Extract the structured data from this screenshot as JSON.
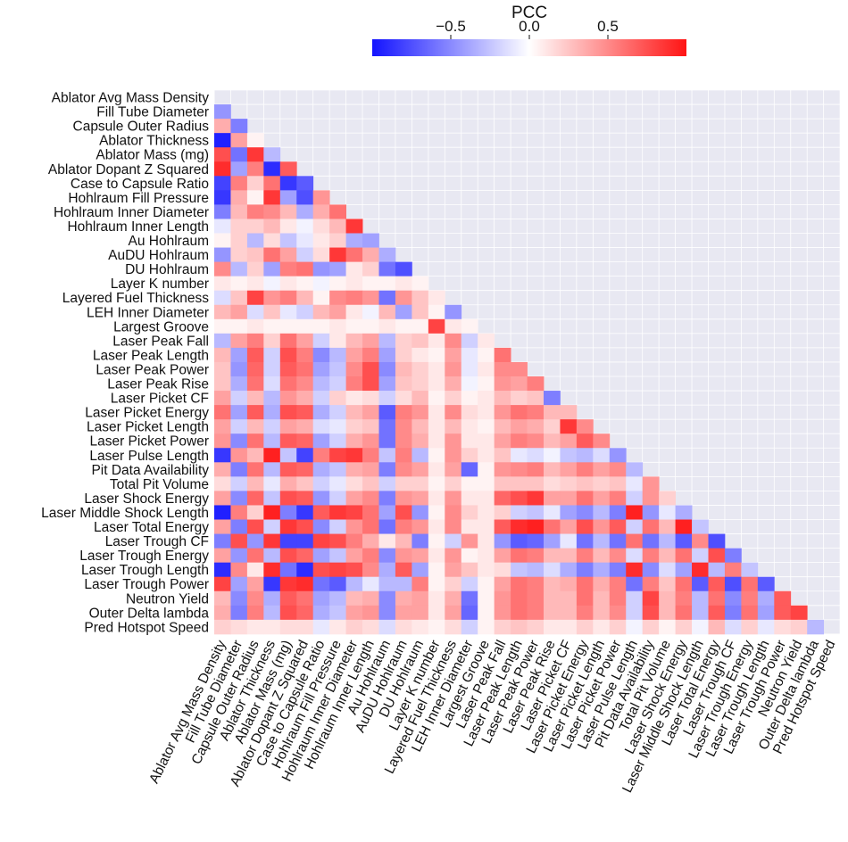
{
  "chart_data": {
    "type": "heatmap",
    "layout_shape": "lower-triangle",
    "colorbar": {
      "title": "PCC",
      "range": [
        -1,
        1
      ],
      "ticks": [
        -0.5,
        0.0,
        0.5
      ],
      "tick_labels": [
        "−0.5",
        "0.0",
        "0.5"
      ],
      "colors": {
        "negative": "#1414ff",
        "zero": "#ffffff",
        "positive": "#ff1414"
      }
    },
    "grid_background": "#e8e8f2",
    "variables": [
      "Ablator Avg Mass Density",
      "Fill Tube Diameter",
      "Capsule Outer Radius",
      "Ablator Thickness",
      "Ablator Mass (mg)",
      "Ablator Dopant Z Squared",
      "Case to Capsule Ratio",
      "Hohlraum Fill Pressure",
      "Hohlraum Inner Diameter",
      "Hohlraum Inner Length",
      "Au Hohlraum",
      "AuDU Hohlraum",
      "DU Hohlraum",
      "Layer K number",
      "Layered Fuel Thickness",
      "LEH Inner Diameter",
      "Largest Groove",
      "Laser Peak Fall",
      "Laser Peak Length",
      "Laser Peak Power",
      "Laser Peak Rise",
      "Laser Picket CF",
      "Laser Picket Energy",
      "Laser Picket Length",
      "Laser Picket Power",
      "Laser Pulse Length",
      "Pit Data Availability",
      "Total Pit Volume",
      "Laser Shock Energy",
      "Laser Middle Shock Length",
      "Laser Total Energy",
      "Laser Trough CF",
      "Laser Trough Energy",
      "Laser Trough Length",
      "Laser Trough Power",
      "Neutron Yield",
      "Outer Delta lambda",
      "Pred Hotspot Speed"
    ],
    "rows": [
      [],
      [
        -0.45
      ],
      [
        0.35,
        -0.55
      ],
      [
        -0.95,
        0.4,
        0.05
      ],
      [
        0.75,
        -0.6,
        0.85,
        -0.3
      ],
      [
        0.9,
        -0.4,
        0.55,
        -0.9,
        0.7
      ],
      [
        -0.8,
        0.55,
        0.2,
        0.6,
        -0.85,
        -0.7
      ],
      [
        -0.85,
        0.35,
        0.05,
        0.85,
        -0.4,
        -0.75,
        0.45
      ],
      [
        -0.55,
        0.3,
        0.55,
        0.5,
        0.3,
        -0.35,
        0.35,
        0.6
      ],
      [
        -0.1,
        0.2,
        0.2,
        0.3,
        0.1,
        -0.05,
        0.15,
        0.3,
        0.85
      ],
      [
        0.05,
        0.2,
        -0.3,
        0.15,
        -0.25,
        -0.1,
        0.1,
        0.2,
        -0.35,
        -0.4
      ],
      [
        -0.45,
        0.2,
        0.25,
        0.6,
        0.4,
        -0.2,
        0.15,
        0.85,
        0.6,
        0.35,
        -0.35
      ],
      [
        0.5,
        -0.3,
        0.2,
        -0.4,
        0.55,
        0.6,
        -0.45,
        -0.4,
        0.1,
        0.2,
        -0.6,
        -0.75
      ],
      [
        0.1,
        0.05,
        0.1,
        -0.05,
        0.1,
        0.05,
        -0.05,
        0.05,
        0.1,
        0.05,
        0.05,
        0.1,
        0.05
      ],
      [
        -0.15,
        0.25,
        0.8,
        0.45,
        0.55,
        0.3,
        0.05,
        0.5,
        0.55,
        0.45,
        -0.6,
        0.45,
        0.25,
        0.1
      ],
      [
        0.3,
        0.4,
        -0.15,
        0.25,
        -0.1,
        -0.2,
        0.3,
        0.4,
        0.1,
        -0.05,
        0.3,
        -0.4,
        0.25,
        0.05,
        -0.45
      ],
      [
        0.05,
        0.05,
        0.1,
        0.05,
        0.05,
        0.05,
        0.05,
        0.1,
        0.05,
        0.05,
        0.1,
        0.05,
        0.05,
        0.8,
        0.1,
        0.05
      ],
      [
        -0.3,
        0.4,
        0.55,
        0.2,
        0.6,
        0.4,
        -0.2,
        0.1,
        0.3,
        0.4,
        -0.3,
        0.2,
        0.25,
        0.1,
        0.5,
        -0.2,
        0.1
      ],
      [
        0.3,
        -0.4,
        0.7,
        -0.2,
        0.75,
        0.55,
        -0.5,
        -0.3,
        0.4,
        0.55,
        -0.4,
        0.2,
        0.1,
        0.05,
        0.4,
        -0.1,
        0.05,
        0.6
      ],
      [
        0.25,
        -0.45,
        0.65,
        -0.2,
        0.7,
        0.6,
        -0.4,
        -0.25,
        0.5,
        0.75,
        -0.5,
        0.3,
        0.2,
        0.1,
        0.45,
        -0.1,
        0.1,
        0.5,
        0.5
      ],
      [
        0.25,
        -0.35,
        0.6,
        -0.15,
        0.6,
        0.5,
        -0.3,
        -0.2,
        0.55,
        0.75,
        -0.4,
        0.25,
        0.2,
        0.1,
        0.35,
        -0.05,
        0.05,
        0.45,
        0.4,
        0.55
      ],
      [
        0.4,
        -0.2,
        0.3,
        -0.3,
        0.45,
        0.35,
        -0.2,
        0.2,
        0.1,
        0.15,
        -0.2,
        0.15,
        0.3,
        0.05,
        0.2,
        0.05,
        0.1,
        0.3,
        0.2,
        0.25,
        -0.55
      ],
      [
        0.6,
        -0.4,
        0.7,
        -0.35,
        0.75,
        0.7,
        -0.35,
        -0.2,
        0.3,
        0.4,
        -0.7,
        0.55,
        0.45,
        0.1,
        0.5,
        0.15,
        0.1,
        0.45,
        0.6,
        0.55,
        0.3,
        0.3
      ],
      [
        0.4,
        -0.2,
        0.3,
        -0.2,
        0.4,
        0.35,
        -0.15,
        -0.1,
        0.2,
        0.25,
        -0.6,
        0.5,
        0.3,
        0.1,
        0.3,
        0.1,
        0.05,
        0.3,
        0.4,
        0.35,
        0.2,
        0.85,
        0.5
      ],
      [
        0.45,
        -0.5,
        0.6,
        -0.3,
        0.7,
        0.65,
        -0.4,
        -0.2,
        0.35,
        0.45,
        -0.6,
        0.5,
        0.35,
        0.1,
        0.45,
        0.1,
        0.1,
        0.4,
        0.55,
        0.5,
        0.3,
        0.4,
        0.7,
        0.5
      ],
      [
        -0.85,
        0.45,
        0.3,
        0.95,
        -0.25,
        -0.8,
        0.55,
        0.8,
        0.85,
        0.55,
        -0.25,
        0.55,
        -0.3,
        0.05,
        0.45,
        0.2,
        0.1,
        0.25,
        -0.1,
        -0.15,
        -0.05,
        -0.25,
        -0.3,
        -0.15,
        -0.45
      ],
      [
        0.35,
        -0.55,
        0.6,
        -0.3,
        0.7,
        0.65,
        -0.35,
        -0.25,
        0.35,
        0.4,
        -0.55,
        0.5,
        0.4,
        0.1,
        0.4,
        -0.65,
        0.05,
        0.45,
        0.5,
        0.55,
        0.3,
        0.4,
        0.55,
        0.4,
        0.5,
        -0.3
      ],
      [
        0.15,
        -0.2,
        0.3,
        -0.1,
        0.35,
        0.25,
        -0.2,
        -0.1,
        0.15,
        0.25,
        -0.2,
        0.2,
        0.2,
        0.05,
        0.2,
        0.05,
        0.05,
        0.25,
        0.25,
        0.25,
        0.15,
        0.2,
        0.25,
        0.2,
        0.25,
        -0.1,
        0.45
      ],
      [
        0.4,
        -0.5,
        0.65,
        -0.25,
        0.75,
        0.7,
        -0.45,
        -0.2,
        0.4,
        0.5,
        -0.55,
        0.45,
        0.4,
        0.1,
        0.45,
        0.1,
        0.1,
        0.65,
        0.75,
        0.85,
        0.4,
        0.4,
        0.6,
        0.4,
        0.55,
        -0.2,
        0.45,
        0.2
      ],
      [
        -0.95,
        0.55,
        0.2,
        0.95,
        -0.55,
        -0.85,
        0.7,
        0.85,
        0.8,
        0.6,
        -0.4,
        0.75,
        -0.45,
        0.05,
        0.5,
        0.2,
        0.1,
        0.2,
        -0.2,
        -0.25,
        -0.1,
        -0.4,
        -0.5,
        -0.3,
        -0.55,
        0.95,
        -0.45,
        -0.1,
        -0.35
      ],
      [
        0.4,
        -0.55,
        0.75,
        -0.2,
        0.85,
        0.75,
        -0.5,
        -0.2,
        0.45,
        0.6,
        -0.6,
        0.55,
        0.45,
        0.1,
        0.5,
        0.1,
        0.1,
        0.7,
        0.9,
        0.95,
        0.6,
        0.4,
        0.75,
        0.45,
        0.7,
        -0.2,
        0.6,
        0.3,
        0.95,
        -0.25
      ],
      [
        -0.55,
        0.75,
        -0.45,
        0.85,
        -0.8,
        -0.8,
        0.8,
        0.75,
        0.55,
        0.35,
        0.1,
        0.3,
        -0.55,
        0.05,
        -0.2,
        0.45,
        0.1,
        -0.45,
        -0.7,
        -0.65,
        -0.4,
        -0.1,
        -0.6,
        -0.3,
        -0.6,
        0.6,
        -0.6,
        -0.3,
        -0.7,
        0.5,
        -0.75
      ],
      [
        0.4,
        -0.45,
        0.6,
        -0.3,
        0.75,
        0.65,
        -0.4,
        -0.25,
        0.4,
        0.55,
        -0.5,
        0.45,
        0.4,
        0.1,
        0.45,
        0.05,
        0.1,
        0.4,
        0.6,
        0.55,
        0.3,
        0.3,
        0.55,
        0.3,
        0.5,
        -0.15,
        0.55,
        0.3,
        0.6,
        -0.2,
        0.75,
        -0.55
      ],
      [
        -0.9,
        0.5,
        0.1,
        0.9,
        -0.6,
        -0.9,
        0.75,
        0.8,
        0.75,
        0.5,
        -0.35,
        0.7,
        -0.4,
        0.05,
        0.4,
        0.25,
        0.1,
        0.15,
        -0.25,
        -0.3,
        -0.15,
        -0.35,
        -0.55,
        -0.35,
        -0.55,
        0.9,
        -0.5,
        -0.15,
        -0.4,
        0.9,
        -0.3,
        0.55,
        -0.25
      ],
      [
        0.8,
        -0.4,
        0.4,
        -0.85,
        0.85,
        0.9,
        -0.6,
        -0.7,
        -0.3,
        -0.1,
        -0.3,
        -0.3,
        0.55,
        0.05,
        0.2,
        -0.2,
        0.05,
        0.4,
        0.6,
        0.55,
        0.3,
        0.35,
        0.6,
        0.35,
        0.55,
        -0.6,
        0.55,
        0.25,
        0.6,
        -0.7,
        0.7,
        -0.75,
        0.6,
        -0.7
      ],
      [
        0.3,
        -0.5,
        0.5,
        -0.35,
        0.7,
        0.6,
        -0.4,
        -0.3,
        0.3,
        0.35,
        -0.5,
        0.35,
        0.4,
        0.1,
        0.35,
        -0.6,
        0.05,
        0.45,
        0.6,
        0.55,
        0.3,
        0.3,
        0.6,
        0.3,
        0.55,
        -0.2,
        0.8,
        0.3,
        0.55,
        -0.3,
        0.6,
        -0.5,
        0.55,
        -0.35,
        0.7
      ],
      [
        0.35,
        -0.55,
        0.55,
        -0.3,
        0.75,
        0.65,
        -0.35,
        -0.25,
        0.4,
        0.45,
        -0.5,
        0.4,
        0.4,
        0.1,
        0.4,
        -0.65,
        0.05,
        0.45,
        0.6,
        0.55,
        0.3,
        0.3,
        0.55,
        0.3,
        0.5,
        -0.2,
        0.75,
        0.3,
        0.6,
        -0.3,
        0.7,
        -0.55,
        0.6,
        -0.4,
        0.7,
        0.8
      ],
      [
        0.2,
        0.15,
        0.1,
        0.1,
        0.15,
        0.15,
        -0.1,
        0.1,
        0.2,
        0.15,
        -0.15,
        0.15,
        0.1,
        0.05,
        0.15,
        -0.2,
        0.05,
        0.2,
        0.25,
        0.2,
        0.1,
        0.1,
        0.2,
        0.1,
        0.2,
        -0.05,
        0.2,
        0.05,
        0.2,
        -0.05,
        0.3,
        -0.15,
        0.2,
        -0.1,
        0.15,
        0.2,
        -0.3
      ]
    ]
  }
}
